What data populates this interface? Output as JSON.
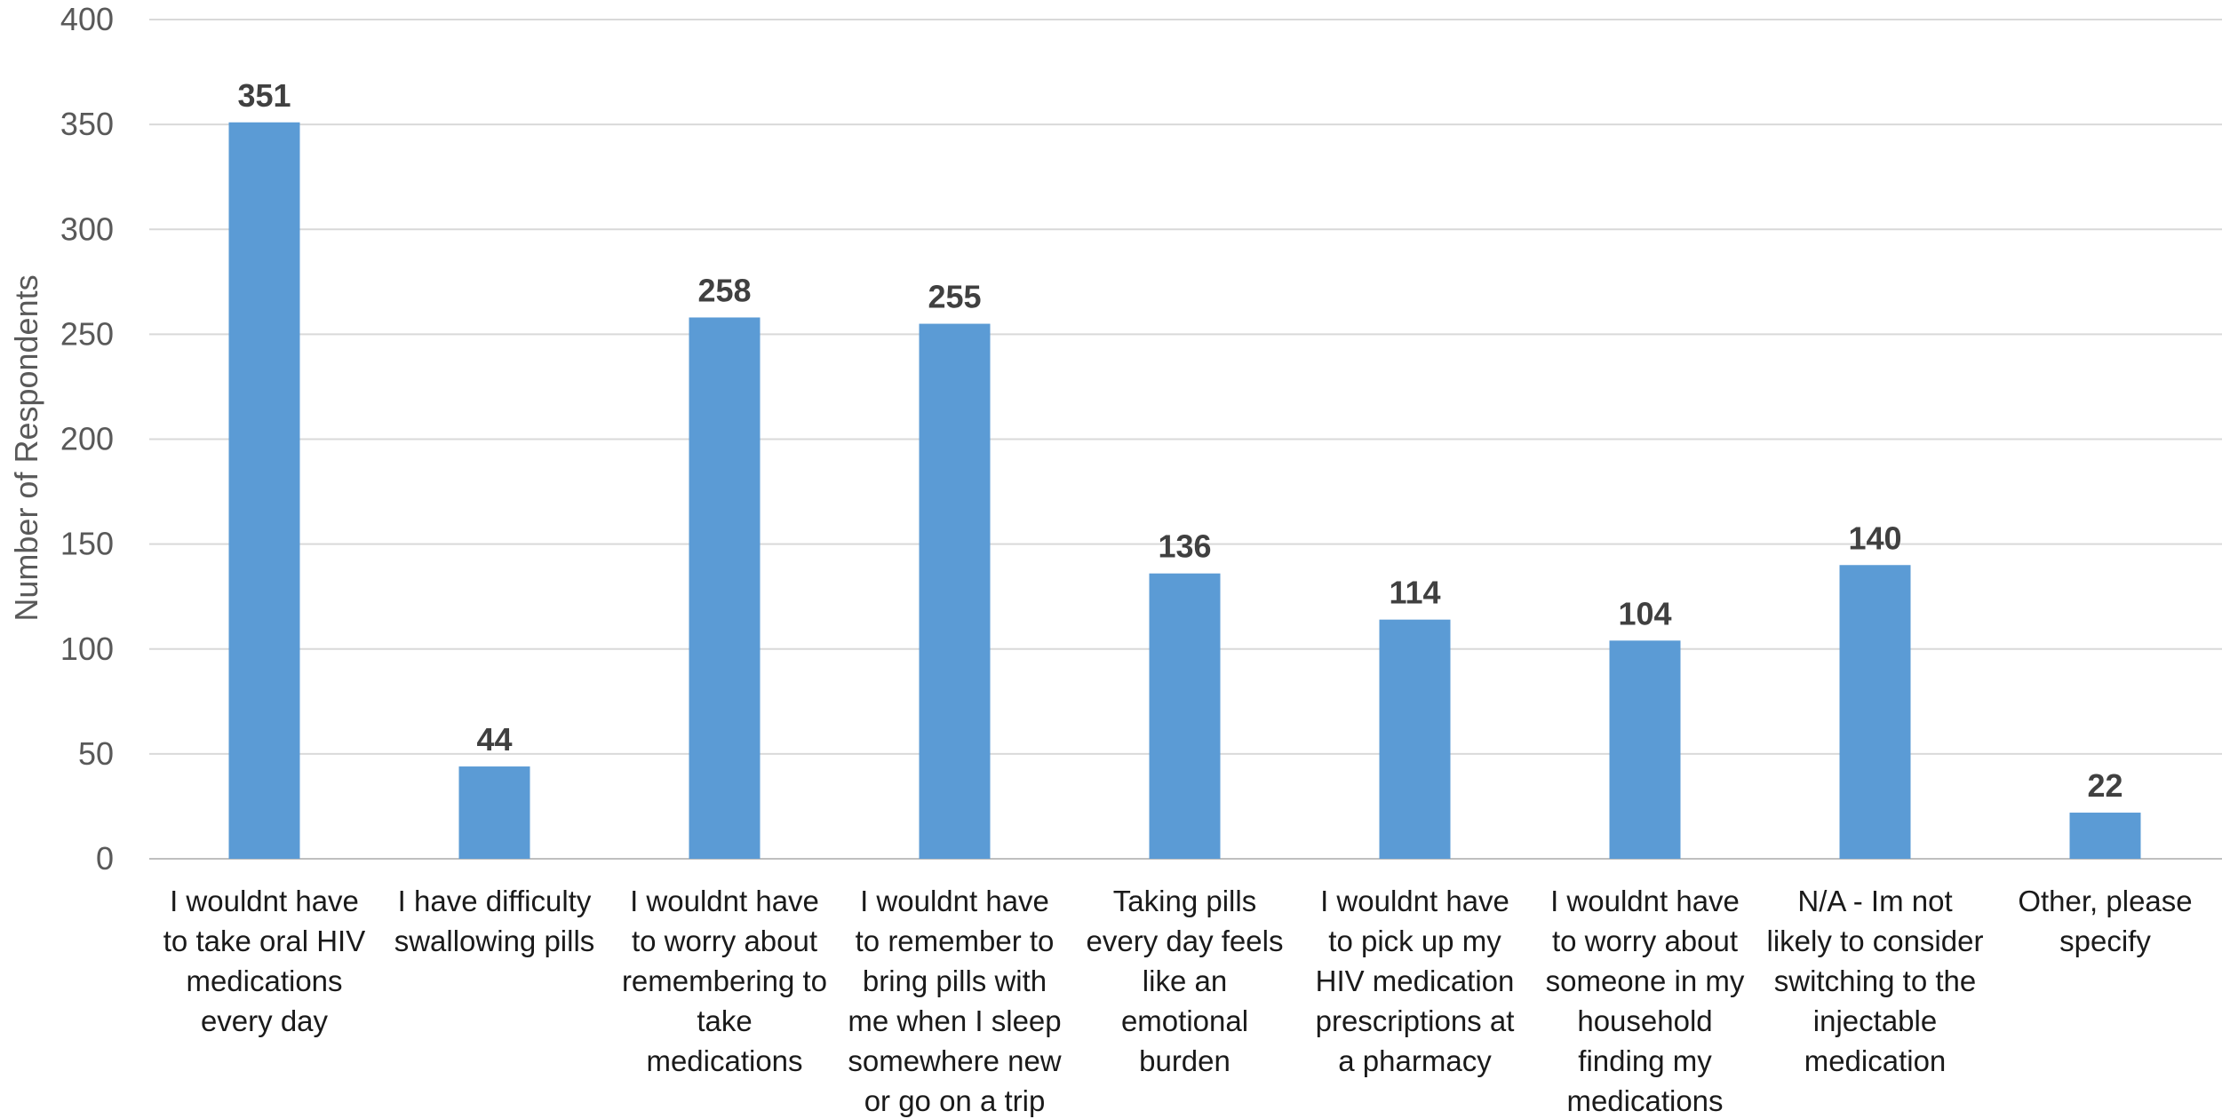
{
  "chart_data": {
    "type": "bar",
    "title": "",
    "xlabel": "",
    "ylabel": "Number of Respondents",
    "ylim": [
      0,
      400
    ],
    "yticks": [
      0,
      50,
      100,
      150,
      200,
      250,
      300,
      350,
      400
    ],
    "grid": true,
    "legend": "none",
    "bar_color": "#5b9bd5",
    "categories": [
      [
        "I wouldnt have",
        "to take oral HIV",
        "medications",
        "every day"
      ],
      [
        "I have difficulty",
        "swallowing pills"
      ],
      [
        "I wouldnt have",
        "to worry about",
        "remembering to",
        "take",
        "medications"
      ],
      [
        "I wouldnt have",
        "to remember to",
        "bring pills with",
        "me when I sleep",
        "somewhere new",
        "or go on a trip"
      ],
      [
        "Taking pills",
        "every day feels",
        "like an",
        "emotional",
        "burden"
      ],
      [
        "I wouldnt have",
        "to pick up my",
        "HIV medication",
        "prescriptions at",
        "a pharmacy"
      ],
      [
        "I wouldnt have",
        "to worry about",
        "someone in my",
        "household",
        "finding my",
        "medications"
      ],
      [
        "N/A - Im not",
        "likely to consider",
        "switching to the",
        "injectable",
        "medication"
      ],
      [
        "Other, please",
        "specify"
      ]
    ],
    "values": [
      351,
      44,
      258,
      255,
      136,
      114,
      104,
      140,
      22
    ]
  }
}
